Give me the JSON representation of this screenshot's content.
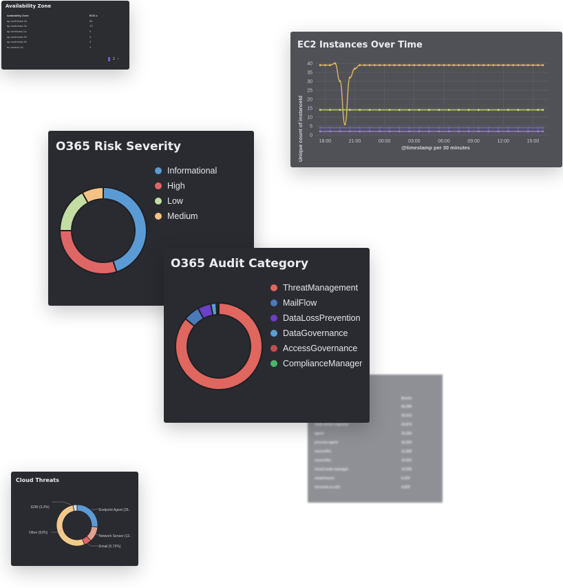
{
  "availability_zone": {
    "title": "Availability Zone",
    "columns": [
      "Availability Zone",
      "ECS c"
    ],
    "rows": [
      [
        "ap-southeast-2a",
        "60"
      ],
      [
        "ap-southeast-2a",
        "10"
      ],
      [
        "ap-northeast-1a",
        "9"
      ],
      [
        "ap-southeast-2b",
        "4"
      ],
      [
        "ap-southeast-2b",
        "4"
      ],
      [
        "eu-central-1a",
        "2"
      ]
    ],
    "pagination": {
      "page": "2"
    }
  },
  "ec2": {
    "title": "EC2 Instances Over Time",
    "ylabel": "Unique count of instanceId",
    "xlabel": "@timestamp per 30 minutes"
  },
  "chart_data": [
    {
      "type": "line",
      "title": "EC2 Instances Over Time",
      "xlabel": "@timestamp per 30 minutes",
      "ylabel": "Unique count of instanceId",
      "x_ticks": [
        "18:00",
        "21:00",
        "00:00",
        "03:00",
        "06:00",
        "09:00",
        "12:00",
        "15:00"
      ],
      "y_ticks": [
        0,
        5,
        10,
        15,
        20,
        25,
        30,
        35,
        40
      ],
      "ylim": [
        0,
        40
      ],
      "xlim": [
        -1.0,
        22.5
      ],
      "grid": true,
      "series": [
        {
          "color": "#e0b862",
          "x": [
            -0.5,
            0,
            0.5,
            1,
            1.5,
            2,
            2.5,
            3,
            3.5,
            4,
            4.5,
            5,
            5.5,
            6,
            6.5,
            7,
            7.5,
            8,
            8.5,
            9,
            9.5,
            10,
            10.5,
            11,
            11.5,
            12,
            12.5,
            13,
            13.5,
            14,
            14.5,
            15,
            15.5,
            16,
            16.5,
            17,
            17.5,
            18,
            18.5,
            19,
            19.5,
            20,
            20.5,
            21,
            21.5,
            22
          ],
          "y": [
            39,
            39,
            39,
            40,
            30,
            6,
            32,
            37,
            39,
            39,
            39,
            39,
            39,
            39,
            39,
            39,
            39,
            39,
            39,
            39,
            39,
            39,
            39,
            39,
            39,
            39,
            39,
            39,
            39,
            39,
            39,
            39,
            39,
            39,
            39,
            39,
            39,
            39,
            39,
            39,
            39,
            39,
            39,
            39,
            39,
            39
          ]
        },
        {
          "color": "#c6d86a",
          "x": [
            -0.5,
            0.5,
            1.5,
            2.5,
            3.5,
            4.5,
            5.5,
            6.5,
            7.5,
            8.5,
            9.5,
            10.5,
            11.5,
            12.5,
            13.5,
            14.5,
            15.5,
            16.5,
            17.5,
            18.5,
            19.5,
            20.5,
            21.5,
            22
          ],
          "y": [
            14,
            14,
            14,
            14,
            14,
            14,
            14,
            14,
            14,
            14,
            14,
            14,
            14,
            14,
            14,
            14,
            14,
            14,
            14,
            14,
            14,
            14,
            14,
            14
          ]
        },
        {
          "color": "#6f63d8",
          "x": [
            -0.5,
            0.5,
            1.5,
            2.5,
            3.5,
            4.5,
            5.5,
            6.5,
            7.5,
            8.5,
            9.5,
            10.5,
            11.5,
            12.5,
            13.5,
            14.5,
            15.5,
            16.5,
            17.5,
            18.5,
            19.5,
            20.5,
            21.5,
            22
          ],
          "y": [
            4,
            4,
            4,
            4,
            4,
            4,
            4,
            4,
            4,
            4,
            4,
            4,
            4,
            4,
            4,
            4,
            4,
            4,
            4,
            4,
            4,
            4,
            4,
            4
          ]
        },
        {
          "color": "#9b7ee0",
          "x": [
            -0.5,
            0.5,
            1.5,
            2.5,
            3.5,
            4.5,
            5.5,
            6.5,
            7.5,
            8.5,
            9.5,
            10.5,
            11.5,
            12.5,
            13.5,
            14.5,
            15.5,
            16.5,
            17.5,
            18.5,
            19.5,
            20.5,
            21.5,
            22
          ],
          "y": [
            2,
            2,
            2,
            2,
            2,
            2,
            2,
            2,
            2,
            2,
            2,
            2,
            2,
            2,
            2,
            2,
            2,
            2,
            2,
            2,
            2,
            2,
            2,
            2
          ]
        }
      ]
    },
    {
      "type": "pie",
      "title": "O365 Risk Severity",
      "labels": [
        "Informational",
        "High",
        "Low",
        "Medium"
      ],
      "values": [
        45,
        30,
        17,
        8
      ],
      "colors": [
        "#5b9bd5",
        "#e06666",
        "#c3dda3",
        "#f6c283"
      ],
      "legend": "right"
    },
    {
      "type": "pie",
      "title": "O365 Audit Category",
      "labels": [
        "ThreatManagement",
        "MailFlow",
        "DataLossPrevention",
        "DataGovernance",
        "AccessGovernance",
        "ComplianceManager"
      ],
      "values": [
        86,
        6,
        5,
        2,
        0.6,
        0.4
      ],
      "colors": [
        "#e06660",
        "#4a7ab8",
        "#6b3fc6",
        "#5a9ed6",
        "#c0504d",
        "#4db36b"
      ],
      "legend": "right"
    },
    {
      "type": "pie",
      "title": "Cloud Threats",
      "labels": [
        "Endpoint Agent (26..",
        "Network Sensor (12..",
        "Email (5.72%)",
        "Other (52%)",
        "EDR (3.2%)"
      ],
      "values": [
        26,
        12,
        5.72,
        52,
        3.2
      ],
      "colors": [
        "#5b9bd5",
        "#e2a08c",
        "#e06666",
        "#f3c98b",
        "#d6d6dc"
      ],
      "legend": "callouts"
    }
  ],
  "risk": {
    "title": "O365 Risk Severity",
    "legend": [
      "Informational",
      "High",
      "Low",
      "Medium"
    ]
  },
  "audit": {
    "title": "O365 Audit Category",
    "legend": [
      "ThreatManagement",
      "MailFlow",
      "DataLossPrevention",
      "DataGovernance",
      "AccessGovernance",
      "ComplianceManager"
    ]
  },
  "cloud": {
    "title": "Cloud Threats",
    "labels": [
      "EDR (3.2%)",
      "Endpoint Agent (26..",
      "Other (52%)",
      "Network Sensor (12..",
      "Email (5.72%)"
    ]
  },
  "blurred_table": {
    "header": "Bootd..",
    "rows": [
      [
        "",
        "60,599"
      ],
      [
        "",
        "33,613"
      ],
      [
        "node-driver-registrar",
        "23,874"
      ],
      [
        "agent",
        "16,264"
      ],
      [
        "process-agent",
        "16,264"
      ],
      [
        "sourcefire",
        "11,668"
      ],
      [
        "sourcefire",
        "10,921"
      ],
      [
        "cloud-node-manager",
        "10,565"
      ],
      [
        "nutanixeyne",
        "6,432"
      ],
      [
        "etcsvela-os-wfn",
        "4,659"
      ]
    ]
  }
}
